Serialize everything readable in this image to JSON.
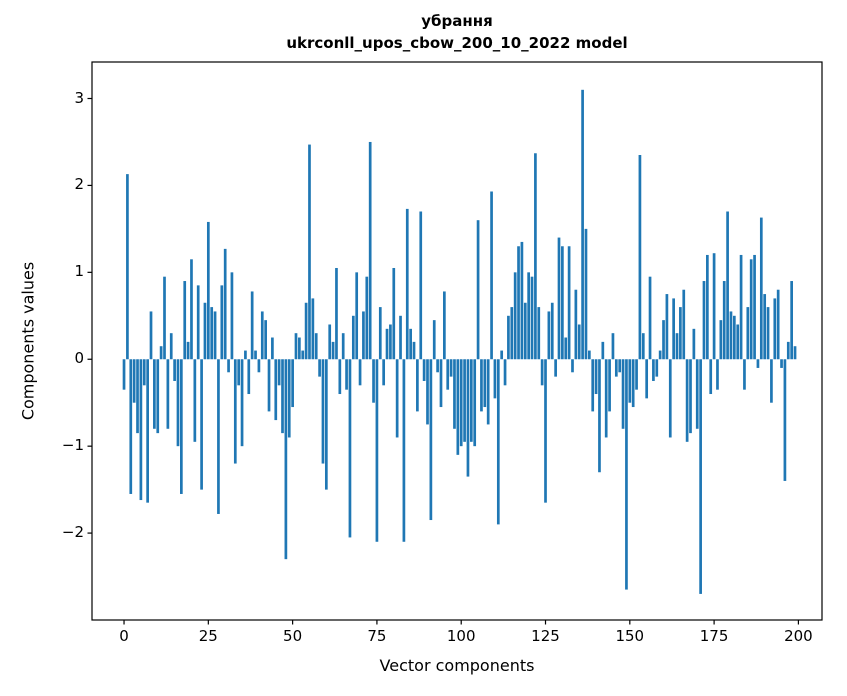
{
  "chart_data": {
    "type": "bar",
    "title": "убрання",
    "subtitle": "ukrconll_upos_cbow_200_10_2022 model",
    "xlabel": "Vector components",
    "ylabel": "Components values",
    "bar_color": "#1f77b4",
    "background_color": "#ffffff",
    "grid": false,
    "legend": "none",
    "xlim": [
      -9.5,
      207
    ],
    "ylim": [
      -3.0,
      3.42
    ],
    "xticks": {
      "values": [
        0,
        25,
        50,
        75,
        100,
        125,
        150,
        175,
        200
      ],
      "labels": [
        "0",
        "25",
        "50",
        "75",
        "100",
        "125",
        "150",
        "175",
        "200"
      ]
    },
    "yticks": {
      "values": [
        -2,
        -1,
        0,
        1,
        2,
        3
      ],
      "labels": [
        "−2",
        "−1",
        "0",
        "1",
        "2",
        "3"
      ]
    },
    "x": "component index 0..199",
    "values": [
      -0.35,
      2.13,
      -1.55,
      -0.5,
      -0.85,
      -1.62,
      -0.3,
      -1.65,
      0.55,
      -0.8,
      -0.85,
      0.15,
      0.95,
      -0.8,
      0.3,
      -0.25,
      -1.0,
      -1.55,
      0.9,
      0.2,
      1.15,
      -0.95,
      0.85,
      -1.5,
      0.65,
      1.58,
      0.6,
      0.55,
      -1.78,
      0.85,
      1.27,
      -0.15,
      1.0,
      -1.2,
      -0.3,
      -1.0,
      0.1,
      -0.4,
      0.78,
      0.1,
      -0.15,
      0.55,
      0.45,
      -0.6,
      0.25,
      -0.7,
      -0.3,
      -0.85,
      -2.3,
      -0.9,
      -0.55,
      0.3,
      0.25,
      0.1,
      0.65,
      2.47,
      0.7,
      0.3,
      -0.2,
      -1.2,
      -1.5,
      0.4,
      0.2,
      1.05,
      -0.4,
      0.3,
      -0.35,
      -2.05,
      0.5,
      1.0,
      -0.3,
      0.55,
      0.95,
      2.5,
      -0.5,
      -2.1,
      0.6,
      -0.3,
      0.35,
      0.4,
      1.05,
      -0.9,
      0.5,
      -2.1,
      1.73,
      0.35,
      0.2,
      -0.6,
      1.7,
      -0.25,
      -0.75,
      -1.85,
      0.45,
      -0.15,
      -0.55,
      0.78,
      -0.35,
      -0.2,
      -0.8,
      -1.1,
      -1.0,
      -0.95,
      -1.35,
      -0.95,
      -1.0,
      1.6,
      -0.6,
      -0.55,
      -0.75,
      1.93,
      -0.45,
      -1.9,
      0.1,
      -0.3,
      0.5,
      0.6,
      1.0,
      1.3,
      1.35,
      0.65,
      1.0,
      0.95,
      2.37,
      0.6,
      -0.3,
      -1.65,
      0.55,
      0.65,
      -0.2,
      1.4,
      1.3,
      0.25,
      1.3,
      -0.15,
      0.8,
      0.4,
      3.1,
      1.5,
      0.1,
      -0.6,
      -0.4,
      -1.3,
      0.2,
      -0.9,
      -0.6,
      0.3,
      -0.2,
      -0.15,
      -0.8,
      -2.65,
      -0.5,
      -0.55,
      -0.35,
      2.35,
      0.3,
      -0.45,
      0.95,
      -0.25,
      -0.2,
      0.1,
      0.45,
      0.75,
      -0.9,
      0.7,
      0.3,
      0.6,
      0.8,
      -0.95,
      -0.85,
      0.35,
      -0.8,
      -2.7,
      0.9,
      1.2,
      -0.4,
      1.22,
      -0.35,
      0.45,
      0.9,
      1.7,
      0.55,
      0.5,
      0.4,
      1.2,
      -0.35,
      0.6,
      1.15,
      1.2,
      -0.1,
      1.63,
      0.75,
      0.6,
      -0.5,
      0.7,
      0.8,
      -0.1,
      -1.4,
      0.2,
      0.9,
      0.15
    ]
  }
}
